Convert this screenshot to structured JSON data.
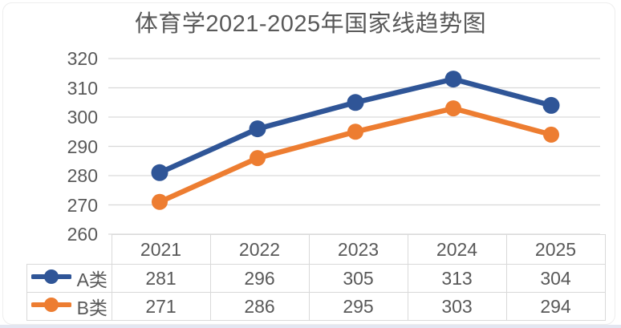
{
  "title": {
    "text": "体育学2021-2025年国家线趋势图",
    "color": "#595959"
  },
  "chart_data": {
    "type": "line",
    "title": "体育学2021-2025年国家线趋势图",
    "categories": [
      "2021",
      "2022",
      "2023",
      "2024",
      "2025"
    ],
    "series": [
      {
        "name": "A类",
        "values": [
          281,
          296,
          305,
          313,
          304
        ],
        "color": "#2F5597"
      },
      {
        "name": "B类",
        "values": [
          271,
          286,
          295,
          303,
          294
        ],
        "color": "#ED7D31"
      }
    ],
    "xlabel": "",
    "ylabel": "",
    "ylim": [
      260,
      320
    ],
    "yticks": [
      320,
      310,
      300,
      290,
      280,
      270,
      260
    ],
    "grid": true,
    "legend_position": "data-table-left",
    "marker": "circle",
    "data_table_shown": true
  },
  "colors": {
    "gridline": "#d9d9d9",
    "table_border": "#d9d9d9",
    "text": "#595959",
    "series_a": "#2F5597",
    "series_b": "#ED7D31",
    "background": "#ffffff",
    "bottom_edge": "#e3e6f1"
  }
}
